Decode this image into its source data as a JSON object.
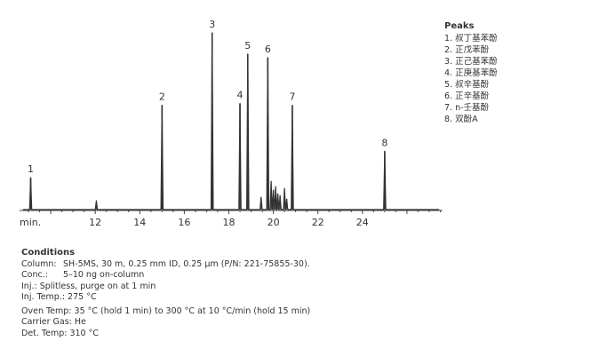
{
  "chart_data": {
    "type": "line",
    "x_unit_label": "min.",
    "xlim": [
      8.6,
      27.6
    ],
    "xticks": [
      12,
      14,
      16,
      18,
      20,
      22,
      24
    ],
    "ylim": [
      0,
      100
    ],
    "grid": false,
    "peaks": [
      {
        "label": "1",
        "rt": 9.1,
        "height": 18
      },
      {
        "label": "2",
        "rt": 15.0,
        "height": 59
      },
      {
        "label": "3",
        "rt": 17.25,
        "height": 100
      },
      {
        "label": "4",
        "rt": 18.5,
        "height": 60
      },
      {
        "label": "5",
        "rt": 18.85,
        "height": 88
      },
      {
        "label": "6",
        "rt": 19.75,
        "height": 86
      },
      {
        "label": "7",
        "rt": 20.85,
        "height": 59
      },
      {
        "label": "8",
        "rt": 25.0,
        "height": 33
      }
    ],
    "minor_peaks": [
      {
        "rt": 12.05,
        "height": 5
      },
      {
        "rt": 19.45,
        "height": 7
      },
      {
        "rt": 19.9,
        "height": 16
      },
      {
        "rt": 20.0,
        "height": 11
      },
      {
        "rt": 20.1,
        "height": 13
      },
      {
        "rt": 20.2,
        "height": 9
      },
      {
        "rt": 20.3,
        "height": 8
      },
      {
        "rt": 20.5,
        "height": 12
      },
      {
        "rt": 20.6,
        "height": 6
      }
    ]
  },
  "legend": {
    "title": "Peaks",
    "items": [
      "1. 叔丁基苯酚",
      "2. 正戊苯酚",
      "3. 正己基苯酚",
      "4. 正庚基苯酚",
      "5. 叔辛基酚",
      "6. 正辛基酚",
      "7. n-壬基酚",
      "8. 双酚A"
    ]
  },
  "conditions": {
    "title": "Conditions",
    "column": {
      "key": "Column:",
      "value": "SH-5MS, 30 m, 0.25 mm ID, 0.25 µm (P/N: 221-75855-30)."
    },
    "conc": {
      "key": "Conc.:",
      "value": "5–10 ng on-column"
    },
    "inj": "Inj.: Splitless, purge on at 1 min",
    "inj_temp": "Inj. Temp.: 275 °C",
    "oven_temp": "Oven Temp: 35 °C (hold 1 min) to 300 °C at 10 °C/min (hold 15 min)",
    "carrier_gas": "Carrier Gas: He",
    "det_temp": "Det. Temp: 310 °C"
  },
  "colors": {
    "trace": "#333333",
    "axis": "#444444",
    "text": "#333333"
  }
}
